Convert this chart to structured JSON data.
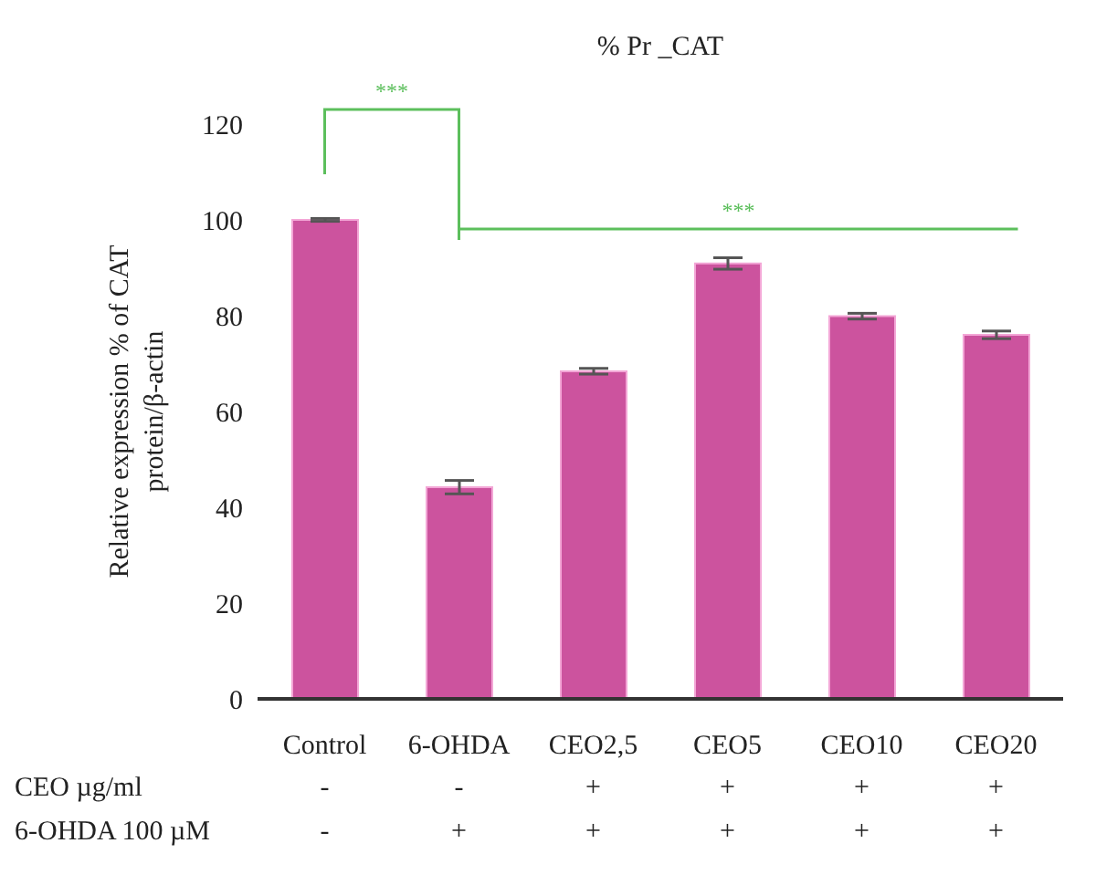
{
  "chart_data": {
    "type": "bar",
    "title": "% Pr _CAT",
    "ylabel": "Relative expression % of CAT protein/β-actin",
    "categories": [
      "Control",
      "6-OHDA",
      "CEO2,5",
      "CEO5",
      "CEO10",
      "CEO20"
    ],
    "values": [
      100,
      44.2,
      68.4,
      90.9,
      79.9,
      76
    ],
    "errors": [
      0.3,
      1.4,
      0.6,
      1.2,
      0.6,
      0.8
    ],
    "color": "#cc539e",
    "ylim": [
      0,
      120
    ],
    "yticks": [
      0,
      20,
      40,
      60,
      80,
      100,
      120
    ],
    "grid": false,
    "legend": false,
    "annotations": [
      "***",
      "***",
      "CEO µg/ml",
      "6-OHDA 100 µM",
      "-",
      "-",
      "+",
      "+",
      "+",
      "+",
      "-",
      "+",
      "+",
      "+",
      "+",
      "+"
    ]
  }
}
